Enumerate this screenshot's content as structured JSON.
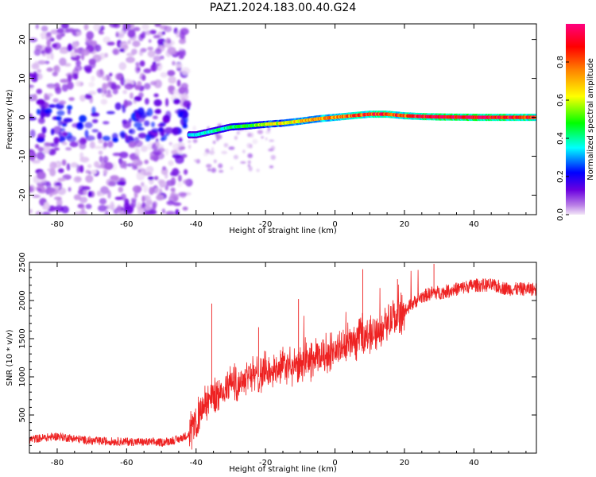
{
  "figure_title": "PAZ1.2024.183.00.40.G24",
  "chart_data": [
    {
      "type": "heatmap",
      "title": "",
      "xlabel": "Height of straight line (km)",
      "ylabel": "Frequency (Hz)",
      "xlim": [
        -88,
        58
      ],
      "ylim": [
        -25,
        24
      ],
      "xticks": [
        -80,
        -60,
        -40,
        -20,
        0,
        20,
        40
      ],
      "yticks": [
        -20,
        -10,
        0,
        10,
        20
      ],
      "colorbar": {
        "label": "Normalized spectral amplitude",
        "range": [
          0.0,
          1.0
        ],
        "ticks": [
          0.0,
          0.2,
          0.4,
          0.6,
          0.8
        ],
        "colormap": [
          "#f2e6f7",
          "#b97ee6",
          "#6a00e0",
          "#0000ff",
          "#00ffff",
          "#00ff00",
          "#ffff00",
          "#ff8000",
          "#ff0000",
          "#ff007f"
        ]
      },
      "ridge": {
        "description_points_height_km": [
          -40,
          -35,
          -30,
          -25,
          -20,
          -15,
          -10,
          -5,
          0,
          5,
          10,
          15,
          20,
          25,
          30,
          40,
          50,
          58
        ],
        "frequency_hz": [
          -4.5,
          -3.5,
          -2.5,
          -2.2,
          -1.8,
          -1.5,
          -1.0,
          -0.4,
          0.0,
          0.4,
          0.8,
          0.8,
          0.4,
          0.2,
          0.1,
          0.0,
          0.0,
          0.0
        ],
        "amplitude": [
          0.35,
          0.4,
          0.45,
          0.5,
          0.6,
          0.65,
          0.7,
          0.75,
          0.8,
          0.85,
          0.9,
          0.9,
          0.85,
          0.95,
          1.0,
          1.0,
          0.95,
          0.9
        ]
      },
      "noise_region_height_km": [
        -88,
        -42
      ],
      "noise_band_frequency_hz": [
        -6,
        3
      ]
    },
    {
      "type": "line",
      "title": "",
      "xlabel": "Height of straight line (km)",
      "ylabel": "SNR (10 * v/v)",
      "xlim": [
        -88,
        58
      ],
      "ylim": [
        0,
        2500
      ],
      "xticks": [
        -80,
        -60,
        -40,
        -20,
        0,
        20,
        40
      ],
      "yticks": [
        500,
        1000,
        1500,
        2000,
        2500
      ],
      "color": "#ee2222",
      "series": [
        {
          "x": [
            -88,
            -80,
            -70,
            -60,
            -50,
            -45,
            -42,
            -40,
            -38,
            -35,
            -32,
            -30,
            -28,
            -25,
            -22,
            -20,
            -18,
            -15,
            -12,
            -10,
            -8,
            -5,
            -2,
            0,
            3,
            5,
            8,
            10,
            12,
            15,
            18,
            20,
            22,
            25,
            28,
            30,
            35,
            40,
            45,
            50,
            55,
            58
          ],
          "y": [
            180,
            220,
            160,
            150,
            140,
            180,
            250,
            400,
            600,
            750,
            800,
            950,
            900,
            1050,
            1000,
            1100,
            1050,
            1150,
            1100,
            1150,
            1200,
            1250,
            1300,
            1350,
            1400,
            1450,
            1500,
            1550,
            1600,
            1700,
            1800,
            1850,
            1950,
            2050,
            2100,
            2100,
            2150,
            2200,
            2200,
            2150,
            2150,
            2150
          ]
        }
      ],
      "peaks": [
        {
          "x": -35.5,
          "y": 1960
        },
        {
          "x": -22,
          "y": 1650
        },
        {
          "x": -10.5,
          "y": 2020
        },
        {
          "x": 8,
          "y": 2410
        },
        {
          "x": 18,
          "y": 2280
        },
        {
          "x": 28.5,
          "y": 2480
        }
      ]
    }
  ]
}
